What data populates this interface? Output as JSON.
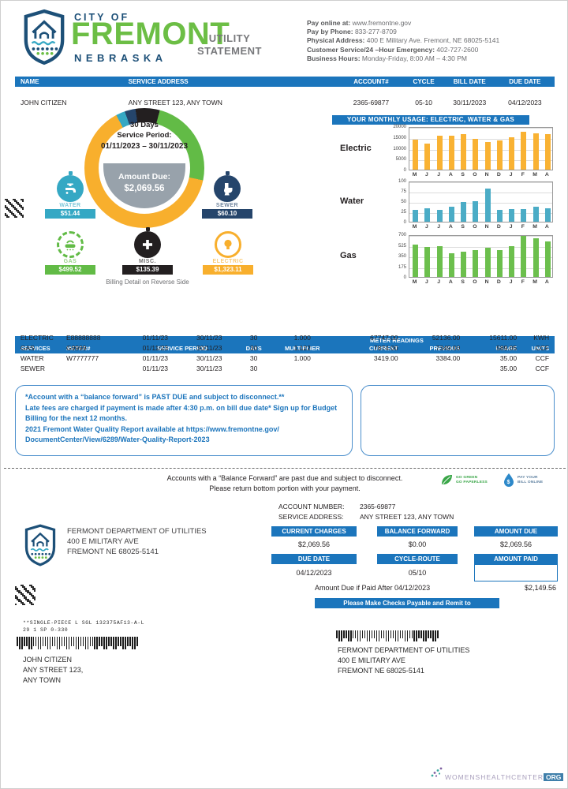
{
  "header": {
    "logo": {
      "city_of": "CITY OF",
      "name": "FREMONT",
      "state": "NEBRASKA"
    },
    "title_line1": "UTILITY",
    "title_line2": "STATEMENT",
    "contact": [
      {
        "label": "Pay online at:",
        "value": " www.fremontne.gov"
      },
      {
        "label": "Pay by Phone:",
        "value": " 833-277-8709"
      },
      {
        "label": "Physical Address:",
        "value": " 400 E Military Ave. Fremont, NE 68025-5141"
      },
      {
        "label": "Customer Service/24 –Hour Emergency:",
        "value": " 402-727-2600"
      },
      {
        "label": "Business Hours:",
        "value": " Monday-Friday, 8:00 AM – 4:30 PM"
      }
    ]
  },
  "account_bar": {
    "columns": [
      {
        "header": "NAME",
        "value": "JOHN CITIZEN"
      },
      {
        "header": "SERVICE ADDRESS",
        "value": "ANY STREET 123, ANY TOWN"
      },
      {
        "header": "ACCOUNT#",
        "value": "2365-69877"
      },
      {
        "header": "CYCLE",
        "value": "05-10"
      },
      {
        "header": "BILL DATE",
        "value": "30/11/2023"
      },
      {
        "header": "DUE DATE",
        "value": "04/12/2023"
      }
    ]
  },
  "donut": {
    "days": "30 Days",
    "period_label": "Service Period:",
    "period": "01/11/2023 – 30/11/2023",
    "amount_label": "Amount Due:",
    "amount": "$2,069.56",
    "footnote": "Billing Detail on Reverse Side"
  },
  "services": [
    {
      "name": "WATER",
      "amount": "$51.44",
      "color": "#35A8C4",
      "icon": "faucet-icon"
    },
    {
      "name": "SEWER",
      "amount": "$60.10",
      "color": "#25456B",
      "icon": "toilet-icon"
    },
    {
      "name": "GAS",
      "amount": "$499.52",
      "color": "#62BB46",
      "icon": "burner-icon"
    },
    {
      "name": "MISC.",
      "amount": "$135.39",
      "color": "#231F20",
      "icon": "plus-icon"
    },
    {
      "name": "ELECTRIC",
      "amount": "$1,323.11",
      "color": "#F8AF2D",
      "icon": "bulb-icon"
    }
  ],
  "usage": {
    "title": "YOUR MONTHLY USAGE: ELECTRIC, WATER & GAS",
    "months": [
      "M",
      "J",
      "J",
      "A",
      "S",
      "O",
      "N",
      "D",
      "J",
      "F",
      "M",
      "A"
    ]
  },
  "chart_data": [
    {
      "type": "pie",
      "title": "Amount Due breakdown",
      "labels": [
        "ELECTRIC",
        "GAS",
        "MISC.",
        "SEWER",
        "WATER"
      ],
      "values": [
        1323.11,
        499.52,
        135.39,
        60.1,
        51.44
      ],
      "colors": [
        "#F8AF2D",
        "#62BB46",
        "#231F20",
        "#25456B",
        "#35A8C4"
      ],
      "total": 2069.56,
      "center_text": "Amount Due: $2,069.56"
    },
    {
      "type": "bar",
      "name": "Electric",
      "categories": [
        "M",
        "J",
        "J",
        "A",
        "S",
        "O",
        "N",
        "D",
        "J",
        "F",
        "M",
        "A"
      ],
      "values": [
        14000,
        12200,
        15500,
        15500,
        16200,
        14200,
        12800,
        13600,
        15000,
        17500,
        16800,
        16200
      ],
      "yticks": [
        0,
        5000,
        10000,
        15000,
        20000
      ],
      "ylim": [
        0,
        20000
      ],
      "color": "#F9B233"
    },
    {
      "type": "bar",
      "name": "Water",
      "categories": [
        "M",
        "J",
        "J",
        "A",
        "S",
        "O",
        "N",
        "D",
        "J",
        "F",
        "M",
        "A"
      ],
      "values": [
        28,
        33,
        28,
        37,
        48,
        50,
        80,
        28,
        31,
        31,
        36,
        33
      ],
      "yticks": [
        0,
        25,
        50,
        75,
        100
      ],
      "ylim": [
        0,
        100
      ],
      "color": "#4BACC6"
    },
    {
      "type": "bar",
      "name": "Gas",
      "categories": [
        "M",
        "J",
        "J",
        "A",
        "S",
        "O",
        "N",
        "D",
        "J",
        "F",
        "M",
        "A"
      ],
      "values": [
        530,
        495,
        505,
        385,
        410,
        440,
        485,
        440,
        500,
        675,
        640,
        590
      ],
      "yticks": [
        0,
        175,
        350,
        525,
        700
      ],
      "ylim": [
        0,
        700
      ],
      "color": "#6CBF4D"
    }
  ],
  "meter_table": {
    "group_header": "METER READINGS",
    "headers": [
      "SERVICES",
      "METER#",
      "SERVICE PERIOD",
      "DAYS",
      "MULTIPLIER",
      "CURRENT",
      "PREVIOUS",
      "USAGE",
      "UNITS"
    ],
    "rows": [
      [
        "ELECTRIC",
        "E88888888",
        "01/11/23",
        "30/11/23",
        "30",
        "1.000",
        "67747.00",
        "52136.00",
        "15611.00",
        "KWH"
      ],
      [
        "GAS",
        "G9999",
        "01/11/23",
        "30/11/23",
        "30",
        "1.122",
        "7874.00",
        "7349.00",
        "589.05",
        "CCF"
      ],
      [
        "WATER",
        "W7777777",
        "01/11/23",
        "30/11/23",
        "30",
        "1.000",
        "3419.00",
        "3384.00",
        "35.00",
        "CCF"
      ],
      [
        "SEWER",
        "",
        "01/11/23",
        "30/11/23",
        "30",
        "",
        "",
        "",
        "35.00",
        "CCF"
      ]
    ]
  },
  "notice": {
    "lines": [
      "*Account with a “balance forward” is PAST DUE and subject to disconnect.**",
      "Late fees are charged if payment is made after 4:30 p.m. on bill due date* Sign up for Budget",
      "Billing for the next 12 months.",
      "2021 Fremont Water Quality Report available at https://www.fremontne.gov/",
      "DocumentCenter/View/6289/Water-Quality-Report-2023"
    ]
  },
  "stub_divider": {
    "line1": "Accounts with a “Balance Forward” are past due and subject to disconnect.",
    "line2": "Please return bottom portion with your payment.",
    "go_green": "GO GREEN",
    "go_paperless": "GO PAPERLESS",
    "pay_your": "PAY YOUR",
    "bill_online": "BILL ONLINE"
  },
  "stub": {
    "account_number_label": "ACCOUNT NUMBER:",
    "account_number": "2365-69877",
    "service_address_label": "SERVICE ADDRESS:",
    "service_address": "ANY STREET 123, ANY TOWN",
    "utility_name": "FERMONT DEPARTMENT OF UTILITIES",
    "utility_addr1": "400 E MILITARY AVE",
    "utility_addr2": "FREMONT NE 68025-5141",
    "boxes_row1": [
      {
        "h": "CURRENT CHARGES",
        "v": "$2,069.56"
      },
      {
        "h": "BALANCE FORWARD",
        "v": "$0.00"
      },
      {
        "h": "AMOUNT DUE",
        "v": "$2,069.56"
      }
    ],
    "boxes_row2": [
      {
        "h": "DUE DATE",
        "v": "04/12/2023"
      },
      {
        "h": "CYCLE-ROUTE",
        "v": "05/10"
      },
      {
        "h": "AMOUNT PAID",
        "v": ""
      }
    ],
    "late_label": "Amount Due if Paid After 04/12/2023",
    "late_amount": "$2,149.56",
    "remit_bar": "Please Make Checks Payable and Remit to"
  },
  "mailing": {
    "meta1": "**SINGLE-PIECE L SGL 132375AF13-A-L",
    "meta2": "29 1 SP 0-330",
    "recipient": [
      "JOHN CITIZEN",
      "ANY STREET 123,",
      "ANY TOWN"
    ],
    "payee": [
      "FERMONT DEPARTMENT OF UTILITIES",
      "400 E MILITARY AVE",
      "FREMONT NE 68025-5141"
    ]
  },
  "footer": {
    "watermark": "WOMENSHEALTHCENTER",
    "watermark_suffix": "ORG"
  }
}
